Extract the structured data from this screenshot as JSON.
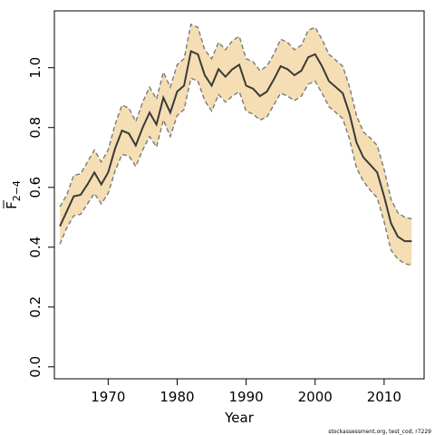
{
  "chart_data": {
    "type": "line",
    "title": "",
    "xlabel": "Year",
    "ylabel": {
      "base": "F",
      "subscript": "2−4"
    },
    "xlim": [
      1962.2,
      2015.8
    ],
    "ylim": [
      -0.04,
      1.19
    ],
    "x_ticks": [
      1970,
      1980,
      1990,
      2000,
      2010
    ],
    "y_ticks": [
      0.0,
      0.2,
      0.4,
      0.6,
      0.8,
      1.0
    ],
    "y_tick_labels": [
      "0.0",
      "0.2",
      "0.4",
      "0.6",
      "0.8",
      "1.0"
    ],
    "grid": false,
    "legend": "none",
    "colors": {
      "band": "#f5deb3",
      "line": "#3a3a3a",
      "bounds": "#7a7a7a"
    },
    "x": [
      1963,
      1964,
      1965,
      1966,
      1967,
      1968,
      1969,
      1970,
      1971,
      1972,
      1973,
      1974,
      1975,
      1976,
      1977,
      1978,
      1979,
      1980,
      1981,
      1982,
      1983,
      1984,
      1985,
      1986,
      1987,
      1988,
      1989,
      1990,
      1991,
      1992,
      1993,
      1994,
      1995,
      1996,
      1997,
      1998,
      1999,
      2000,
      2001,
      2002,
      2003,
      2004,
      2005,
      2006,
      2007,
      2008,
      2009,
      2010,
      2011,
      2012,
      2013,
      2014
    ],
    "series": [
      {
        "role": "estimate",
        "values": [
          0.47,
          0.52,
          0.57,
          0.575,
          0.61,
          0.65,
          0.61,
          0.65,
          0.73,
          0.79,
          0.78,
          0.74,
          0.8,
          0.85,
          0.81,
          0.9,
          0.85,
          0.92,
          0.94,
          1.055,
          1.045,
          0.975,
          0.94,
          0.995,
          0.97,
          0.995,
          1.01,
          0.94,
          0.93,
          0.905,
          0.92,
          0.96,
          1.005,
          0.995,
          0.975,
          0.99,
          1.035,
          1.045,
          1.005,
          0.955,
          0.935,
          0.915,
          0.845,
          0.75,
          0.7,
          0.675,
          0.65,
          0.57,
          0.48,
          0.435,
          0.42,
          0.42
        ]
      },
      {
        "role": "upper",
        "values": [
          0.535,
          0.575,
          0.64,
          0.645,
          0.685,
          0.725,
          0.685,
          0.725,
          0.81,
          0.875,
          0.865,
          0.82,
          0.885,
          0.935,
          0.895,
          0.985,
          0.935,
          1.01,
          1.03,
          1.145,
          1.135,
          1.06,
          1.03,
          1.085,
          1.06,
          1.09,
          1.105,
          1.03,
          1.02,
          0.99,
          1.005,
          1.045,
          1.095,
          1.085,
          1.06,
          1.075,
          1.125,
          1.135,
          1.095,
          1.045,
          1.025,
          1.005,
          0.935,
          0.84,
          0.785,
          0.765,
          0.74,
          0.66,
          0.56,
          0.515,
          0.5,
          0.495
        ]
      },
      {
        "role": "lower",
        "values": [
          0.41,
          0.465,
          0.505,
          0.51,
          0.545,
          0.58,
          0.545,
          0.58,
          0.655,
          0.71,
          0.705,
          0.67,
          0.725,
          0.77,
          0.735,
          0.825,
          0.77,
          0.84,
          0.86,
          0.965,
          0.955,
          0.89,
          0.855,
          0.91,
          0.885,
          0.905,
          0.92,
          0.855,
          0.845,
          0.825,
          0.835,
          0.875,
          0.915,
          0.905,
          0.89,
          0.905,
          0.945,
          0.955,
          0.915,
          0.87,
          0.85,
          0.83,
          0.76,
          0.665,
          0.62,
          0.59,
          0.565,
          0.485,
          0.39,
          0.36,
          0.345,
          0.34
        ]
      }
    ]
  },
  "footnote": "stockassessment.org, test_cod, r7229"
}
